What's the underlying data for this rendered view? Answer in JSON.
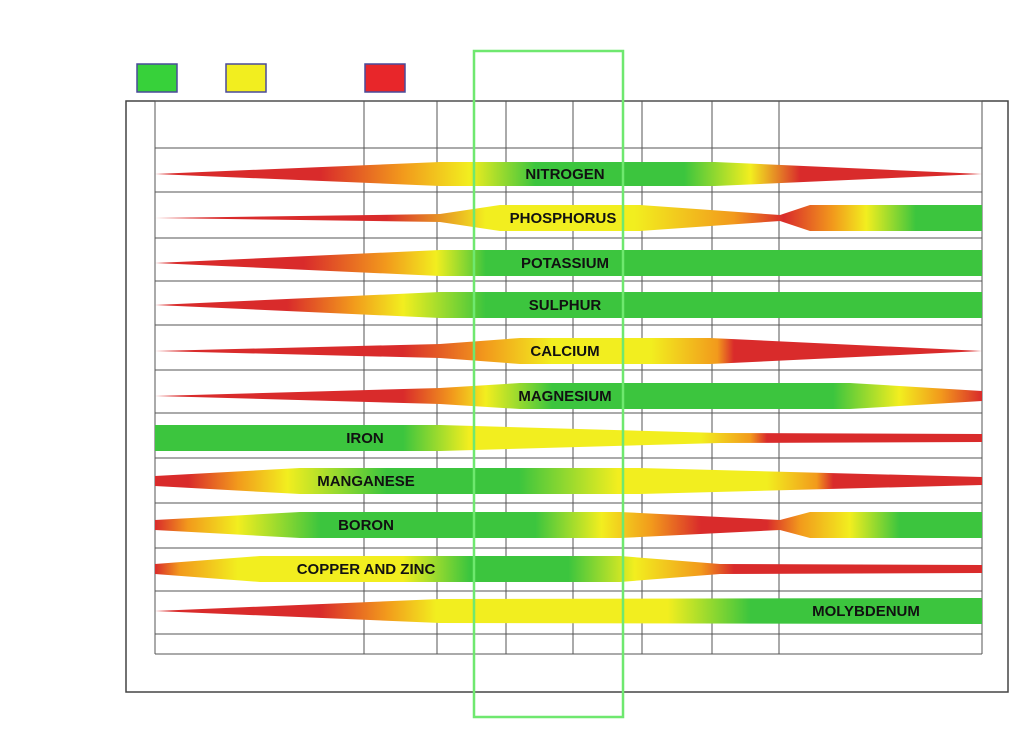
{
  "legend": [
    {
      "color": "#37d13a"
    },
    {
      "color": "#f2ee1f"
    },
    {
      "color": "#e8262a"
    }
  ],
  "colors": {
    "green": "#3cc53e",
    "yellow": "#f2ee1f",
    "orange": "#f29a1c",
    "red": "#d92b2b",
    "highlight": "#6fe86f",
    "grid": "#555555"
  },
  "nutrients": [
    {
      "id": "nitrogen",
      "label": "NITROGEN"
    },
    {
      "id": "phosphorus",
      "label": "PHOSPHORUS"
    },
    {
      "id": "potassium",
      "label": "POTASSIUM"
    },
    {
      "id": "sulphur",
      "label": "SULPHUR"
    },
    {
      "id": "calcium",
      "label": "CALCIUM"
    },
    {
      "id": "magnesium",
      "label": "MAGNESIUM"
    },
    {
      "id": "iron",
      "label": "IRON"
    },
    {
      "id": "manganese",
      "label": "MANGANESE"
    },
    {
      "id": "boron",
      "label": "BORON"
    },
    {
      "id": "copper-and-zinc",
      "label": "COPPER AND ZINC"
    },
    {
      "id": "molybdenum",
      "label": "MOLYBDENUM"
    }
  ]
}
